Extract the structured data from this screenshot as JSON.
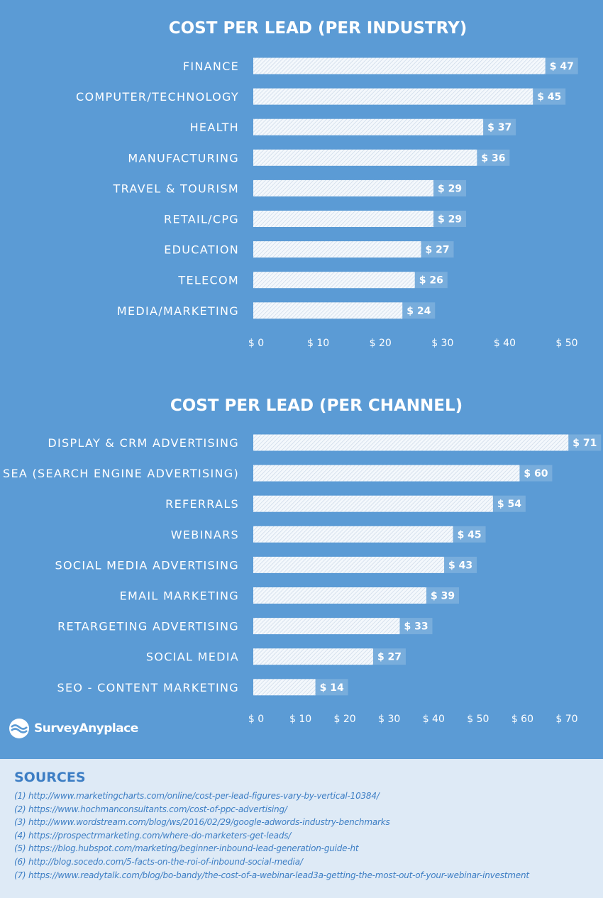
{
  "chart_data": [
    {
      "type": "bar",
      "orientation": "horizontal",
      "title": "COST PER LEAD (PER INDUSTRY)",
      "categories": [
        "FINANCE",
        "COMPUTER/TECHNOLOGY",
        "HEALTH",
        "MANUFACTURING",
        "TRAVEL & TOURISM",
        "RETAIL/CPG",
        "EDUCATION",
        "TELECOM",
        "MEDIA/MARKETING"
      ],
      "values": [
        47,
        45,
        37,
        36,
        29,
        29,
        27,
        26,
        24
      ],
      "value_labels": [
        "$ 47",
        "$ 45",
        "$ 37",
        "$ 36",
        "$ 29",
        "$ 29",
        "$ 27",
        "$ 26",
        "$ 24"
      ],
      "xlim": [
        0,
        50
      ],
      "ticks": [
        0,
        10,
        20,
        30,
        40,
        50
      ],
      "tick_labels": [
        "$ 0",
        "$ 10",
        "$ 20",
        "$ 30",
        "$ 40",
        "$ 50"
      ],
      "grid": false,
      "legend": "none",
      "bar_fill": "hatched-white"
    },
    {
      "type": "bar",
      "orientation": "horizontal",
      "title": "COST PER LEAD (PER CHANNEL)",
      "categories": [
        "DISPLAY & CRM ADVERTISING",
        "SEA (SEARCH ENGINE ADVERTISING)",
        "REFERRALS",
        "WEBINARS",
        "SOCIAL MEDIA ADVERTISING",
        "EMAIL MARKETING",
        "RETARGETING ADVERTISING",
        "SOCIAL MEDIA",
        "SEO - CONTENT MARKETING"
      ],
      "values": [
        71,
        60,
        54,
        45,
        43,
        39,
        33,
        27,
        14
      ],
      "value_labels": [
        "$ 71",
        "$ 60",
        "$ 54",
        "$ 45",
        "$ 43",
        "$ 39",
        "$ 33",
        "$ 27",
        "$ 14"
      ],
      "xlim": [
        0,
        70
      ],
      "ticks": [
        0,
        10,
        20,
        30,
        40,
        50,
        60,
        70
      ],
      "tick_labels": [
        "$ 0",
        "$ 10",
        "$ 20",
        "$ 30",
        "$ 40",
        "$ 50",
        "$ 60",
        "$ 70"
      ],
      "grid": false,
      "legend": "none",
      "bar_fill": "hatched-white"
    }
  ],
  "logo": {
    "text": "SurveyAnyplace",
    "icon": "wave-logo-icon"
  },
  "sources": {
    "title": "SOURCES",
    "items": [
      "(1) http://www.marketingcharts.com/online/cost-per-lead-figures-vary-by-vertical-10384/",
      "(2) https://www.hochmanconsultants.com/cost-of-ppc-advertising/",
      "(3) http://www.wordstream.com/blog/ws/2016/02/29/google-adwords-industry-benchmarks",
      "(4) https://prospectrmarketing.com/where-do-marketers-get-leads/",
      "(5) https://blog.hubspot.com/marketing/beginner-inbound-lead-generation-guide-ht",
      "(6) http://blog.socedo.com/5-facts-on-the-roi-of-inbound-social-media/",
      "(7) https://www.readytalk.com/blog/bo-bandy/the-cost-of-a-webinar-lead3a-getting-the-most-out-of-your-webinar-investment"
    ]
  },
  "colors": {
    "background": "#5b9bd5",
    "sources_background": "#deeaf6",
    "sources_text": "#3d7ec4",
    "text": "#ffffff"
  }
}
